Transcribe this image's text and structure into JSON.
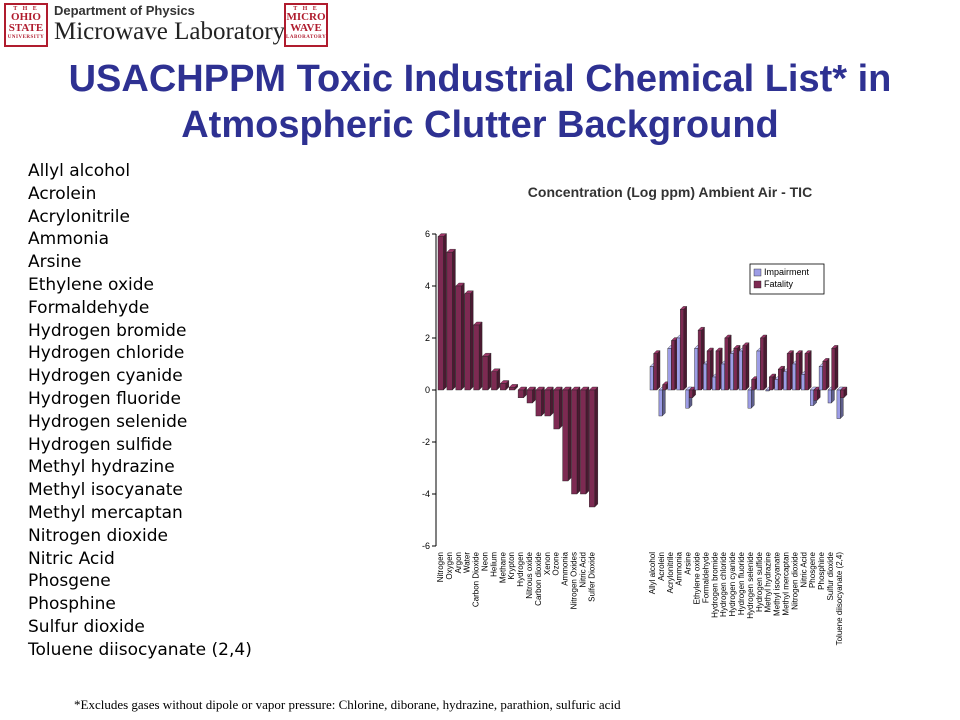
{
  "header": {
    "department": "Department of Physics",
    "lab_name": "Microwave Laboratory",
    "osu_seal": {
      "top": "T H E",
      "mid1": "OHIO",
      "mid2": "STATE",
      "bot": "UNIVERSITY"
    },
    "mw_seal": {
      "top": "T H E",
      "mid1": "MICRO",
      "mid2": "WAVE",
      "bot": "LABORATORY"
    }
  },
  "slide_title": "USACHPPM Toxic Industrial Chemical List* in Atmospheric Clutter Background",
  "chemical_list": [
    "Allyl alcohol",
    "Acrolein",
    "Acrylonitrile",
    "Ammonia",
    "Arsine",
    "Ethylene oxide",
    "Formaldehyde",
    "Hydrogen bromide",
    "Hydrogen chloride",
    "Hydrogen cyanide",
    "Hydrogen fluoride",
    "Hydrogen selenide",
    "Hydrogen sulfide",
    "Methyl hydrazine",
    "Methyl isocyanate",
    "Methyl mercaptan",
    "Nitrogen dioxide",
    "Nitric Acid",
    "Phosgene",
    "Phosphine",
    "Sulfur dioxide",
    "Toluene diisocyanate (2,4)"
  ],
  "footnote": "*Excludes gases without dipole or vapor pressure:   Chlorine, diborane, hydrazine, parathion, sulfuric acid",
  "colors": {
    "title": "#2e3192",
    "impairment": "#9d9de6",
    "fatality": "#7d2a52"
  },
  "chart_data": {
    "type": "bar",
    "title": "Concentration (Log ppm) Ambient Air - TIC",
    "xlabel": "",
    "ylabel": "",
    "ylim": [
      -6,
      6
    ],
    "yticks": [
      "6",
      "4",
      "2",
      "0",
      "-2",
      "-4",
      "-6"
    ],
    "grid": false,
    "legend_position": "right",
    "groups": [
      {
        "categories": [
          "Nitrogen",
          "Oxygen",
          "Argon",
          "Water",
          "Carbon Dioxide",
          "Neon",
          "Helium",
          "Methane",
          "Krypton",
          "Hydrogen",
          "Nitrous oxide",
          "Carbon dioxide",
          "Xenon",
          "Ozone",
          "Ammonia",
          "Nitrogen Oxides",
          "Nitric Acid",
          "Sulfer Dioxide"
        ],
        "series": [
          {
            "values": [
              5.9,
              5.3,
              4.0,
              3.7,
              2.5,
              1.3,
              0.7,
              0.25,
              0.1,
              -0.3,
              -0.5,
              -1.0,
              -1.0,
              -1.5,
              -3.5,
              -4.0,
              -4.0,
              -4.5
            ]
          }
        ]
      },
      {
        "categories": [
          "Allyl alcohol",
          "Acrolein",
          "Acrylonitrile",
          "Ammonia",
          "Arsine",
          "Ethylene oxide",
          "Formaldehyde",
          "Hydrogen bromide",
          "Hydrogen chloride",
          "Hydrogen cyanide",
          "Hydrogen fluoride",
          "Hydrogen selenide",
          "Hydrogen sulfide",
          "Methyl hydrazine",
          "Methyl isocyanate",
          "Methyl mercaptan",
          "Nitrogen dioxide",
          "Nitric Acid",
          "Phosgene",
          "Phosphine",
          "Sulfur dioxide",
          "Toluene diisocyanate (2,4)"
        ],
        "series": [
          {
            "name": "Impairment",
            "values": [
              0.9,
              -1.0,
              1.6,
              2.0,
              -0.7,
              1.6,
              1.0,
              0.5,
              1.0,
              1.4,
              1.5,
              -0.7,
              1.5,
              0.0,
              0.4,
              0.7,
              1.0,
              0.6,
              -0.6,
              0.9,
              -0.5,
              -1.1
            ]
          },
          {
            "name": "Fatality",
            "values": [
              1.4,
              0.2,
              1.9,
              3.1,
              -0.3,
              2.3,
              1.5,
              1.5,
              2.0,
              1.6,
              1.7,
              0.4,
              2.0,
              0.5,
              0.8,
              1.4,
              1.4,
              1.4,
              -0.4,
              1.1,
              1.6,
              -0.3
            ]
          }
        ]
      }
    ]
  }
}
